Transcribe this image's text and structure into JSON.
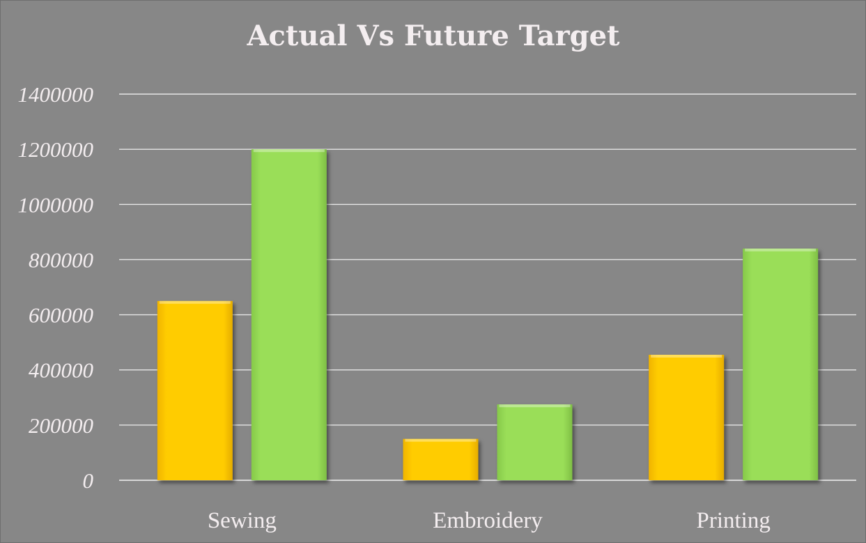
{
  "chart_data": {
    "type": "bar",
    "title": "Actual Vs Future Target",
    "categories": [
      "Sewing",
      "Embroidery",
      "Printing"
    ],
    "series": [
      {
        "values": [
          650000,
          150000,
          455000
        ],
        "color": "#ffcc00"
      },
      {
        "values": [
          1200000,
          275000,
          840000
        ],
        "color": "#99dd55"
      }
    ],
    "ylim": [
      0,
      1400000
    ],
    "yticks": [
      0,
      200000,
      400000,
      600000,
      800000,
      1000000,
      1200000,
      1400000
    ],
    "grid": true,
    "legend": "none",
    "xlabel": "",
    "ylabel": ""
  }
}
